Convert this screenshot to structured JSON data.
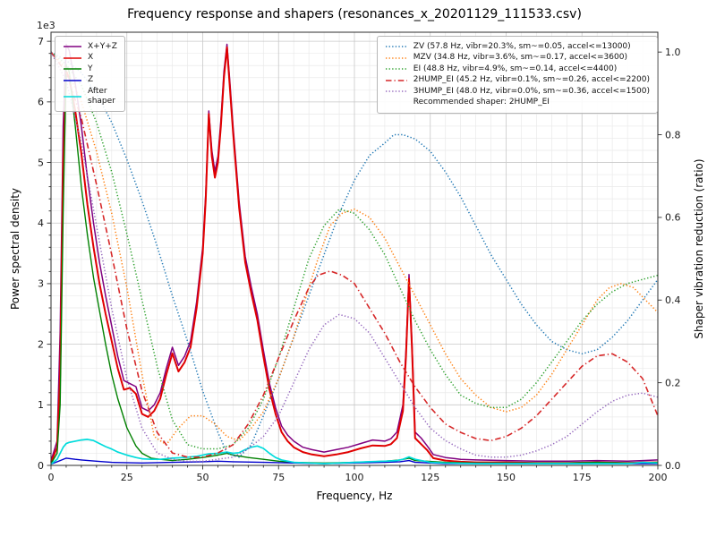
{
  "chart_data": {
    "type": "line",
    "title": "Frequency response and shapers (resonances_x_20201129_111533.csv)",
    "xlabel": "Frequency, Hz",
    "ylabel_left": "Power spectral density",
    "ylabel_right": "Shaper vibration reduction (ratio)",
    "y_offset_text": "1e3",
    "grid": true,
    "xlim": [
      0,
      200
    ],
    "ylim_left": [
      0,
      7.15
    ],
    "ylim_right": [
      0,
      1.048
    ],
    "xticks": [
      0,
      25,
      50,
      75,
      100,
      125,
      150,
      175,
      200
    ],
    "xtick_minor_step": 5,
    "yticks_left": [
      0,
      1,
      2,
      3,
      4,
      5,
      6,
      7
    ],
    "ytick_minor_step": 0.2,
    "yticks_right": [
      0,
      0.2,
      0.4,
      0.6,
      0.8,
      1.0
    ],
    "yticks_right_labels": [
      "0.0",
      "0.2",
      "0.4",
      "0.6",
      "0.8",
      "1.0"
    ],
    "colors": {
      "grid_major": "#c8c8c8",
      "grid_minor": "#e9e9e9",
      "spine": "#2e2e2e"
    },
    "legend_psd": {
      "items": [
        {
          "label": "X+Y+Z",
          "color": "#800080",
          "dash": "solid"
        },
        {
          "label": "X",
          "color": "#e00000",
          "dash": "solid"
        },
        {
          "label": "Y",
          "color": "#008000",
          "dash": "solid"
        },
        {
          "label": "Z",
          "color": "#0000cc",
          "dash": "solid"
        },
        {
          "label": "After\nshaper",
          "color": "#00dcdc",
          "dash": "solid"
        }
      ]
    },
    "legend_shapers": {
      "items": [
        {
          "label": "ZV (57.8 Hz, vibr=20.3%, sm~=0.05, accel<=13000)",
          "color": "#1f77b4",
          "dash": "dotted"
        },
        {
          "label": "MZV (34.8 Hz, vibr=3.6%, sm~=0.17, accel<=3600)",
          "color": "#ff7f0e",
          "dash": "dotted"
        },
        {
          "label": "EI (48.8 Hz, vibr=4.9%, sm~=0.14, accel<=4400)",
          "color": "#2ca02c",
          "dash": "dotted"
        },
        {
          "label": "2HUMP_EI (45.2 Hz, vibr=0.1%, sm~=0.26, accel<=2200)",
          "color": "#d62728",
          "dash": "dashdot"
        },
        {
          "label": "3HUMP_EI (48.0 Hz, vibr=0.0%, sm~=0.36, accel<=1500)",
          "color": "#9467bd",
          "dash": "dotted"
        },
        {
          "label": "Recommended shaper: 2HUMP_EI",
          "color": "",
          "dash": "none"
        }
      ]
    },
    "series": [
      {
        "id": "xyz",
        "label": "X+Y+Z",
        "axis": "left",
        "color": "#800080",
        "dash": "solid",
        "width": 1.5,
        "x": [
          0,
          2,
          3,
          4,
          5,
          6,
          8,
          10,
          12,
          14,
          16,
          18,
          20,
          22,
          24,
          26,
          28,
          30,
          32,
          34,
          36,
          38,
          40,
          42,
          44,
          46,
          48,
          50,
          51,
          52,
          53,
          54,
          55,
          56,
          57,
          58,
          59,
          60,
          62,
          64,
          66,
          68,
          70,
          72,
          74,
          76,
          78,
          80,
          83,
          86,
          90,
          94,
          98,
          102,
          106,
          110,
          112,
          114,
          116,
          117,
          118,
          119,
          120,
          122,
          124,
          126,
          130,
          135,
          140,
          150,
          160,
          170,
          180,
          190,
          195,
          200
        ],
        "y": [
          0.08,
          0.4,
          2.2,
          5.6,
          6.95,
          6.85,
          6.3,
          5.6,
          4.75,
          4.0,
          3.35,
          2.8,
          2.3,
          1.8,
          1.4,
          1.35,
          1.3,
          0.95,
          0.9,
          1.0,
          1.2,
          1.6,
          1.95,
          1.65,
          1.8,
          2.05,
          2.7,
          3.6,
          4.5,
          5.85,
          5.2,
          4.85,
          5.1,
          5.7,
          6.5,
          6.95,
          6.3,
          5.6,
          4.35,
          3.45,
          2.95,
          2.5,
          1.9,
          1.35,
          0.95,
          0.65,
          0.5,
          0.4,
          0.3,
          0.26,
          0.22,
          0.26,
          0.3,
          0.36,
          0.42,
          0.4,
          0.44,
          0.55,
          1.0,
          1.9,
          3.15,
          2.0,
          0.55,
          0.45,
          0.32,
          0.18,
          0.13,
          0.1,
          0.09,
          0.08,
          0.07,
          0.07,
          0.08,
          0.07,
          0.08,
          0.09
        ]
      },
      {
        "id": "x",
        "label": "X",
        "axis": "left",
        "color": "#e00000",
        "dash": "solid",
        "width": 2,
        "x": [
          0,
          2,
          3,
          4,
          5,
          6,
          8,
          10,
          12,
          14,
          16,
          18,
          20,
          22,
          24,
          26,
          28,
          30,
          32,
          34,
          36,
          38,
          40,
          42,
          44,
          46,
          48,
          50,
          51,
          52,
          53,
          54,
          55,
          56,
          57,
          58,
          59,
          60,
          62,
          64,
          66,
          68,
          70,
          72,
          74,
          76,
          78,
          80,
          83,
          86,
          90,
          94,
          98,
          102,
          106,
          110,
          112,
          114,
          116,
          117,
          118,
          119,
          120,
          122,
          124,
          126,
          130,
          135,
          140,
          150,
          160,
          170,
          180,
          190,
          195,
          200
        ],
        "y": [
          0.05,
          0.3,
          1.5,
          5.0,
          6.5,
          6.4,
          5.85,
          5.15,
          4.3,
          3.6,
          3.0,
          2.5,
          2.05,
          1.6,
          1.25,
          1.28,
          1.18,
          0.85,
          0.8,
          0.9,
          1.1,
          1.5,
          1.85,
          1.55,
          1.7,
          1.95,
          2.6,
          3.5,
          4.4,
          5.8,
          5.1,
          4.75,
          5.0,
          5.6,
          6.4,
          6.9,
          6.2,
          5.5,
          4.25,
          3.35,
          2.85,
          2.4,
          1.8,
          1.25,
          0.85,
          0.55,
          0.4,
          0.3,
          0.22,
          0.18,
          0.15,
          0.18,
          0.22,
          0.28,
          0.33,
          0.32,
          0.35,
          0.45,
          0.9,
          1.8,
          3.08,
          1.9,
          0.45,
          0.35,
          0.25,
          0.12,
          0.08,
          0.06,
          0.05,
          0.05,
          0.04,
          0.04,
          0.05,
          0.04,
          0.05,
          0.05
        ]
      },
      {
        "id": "y",
        "label": "Y",
        "axis": "left",
        "color": "#008000",
        "dash": "solid",
        "width": 1.4,
        "x": [
          0,
          2,
          3,
          4,
          5,
          6,
          8,
          10,
          12,
          14,
          16,
          18,
          20,
          22,
          25,
          28,
          30,
          33,
          36,
          40,
          45,
          50,
          55,
          58,
          60,
          65,
          70,
          75,
          80,
          90,
          100,
          110,
          115,
          118,
          120,
          130,
          140,
          150,
          160,
          170,
          180,
          190,
          200
        ],
        "y": [
          0.03,
          0.2,
          1.0,
          4.2,
          6.6,
          6.5,
          5.6,
          4.6,
          3.8,
          3.1,
          2.55,
          2.0,
          1.5,
          1.1,
          0.62,
          0.32,
          0.2,
          0.12,
          0.1,
          0.08,
          0.1,
          0.13,
          0.17,
          0.2,
          0.17,
          0.13,
          0.1,
          0.07,
          0.05,
          0.04,
          0.05,
          0.07,
          0.09,
          0.12,
          0.08,
          0.05,
          0.04,
          0.04,
          0.04,
          0.04,
          0.05,
          0.04,
          0.05
        ]
      },
      {
        "id": "z",
        "label": "Z",
        "axis": "left",
        "color": "#0000cc",
        "dash": "solid",
        "width": 1.4,
        "x": [
          0,
          3,
          5,
          8,
          10,
          15,
          20,
          30,
          40,
          50,
          55,
          60,
          70,
          80,
          90,
          100,
          110,
          115,
          118,
          120,
          130,
          140,
          150,
          160,
          170,
          180,
          190,
          200
        ],
        "y": [
          0.02,
          0.08,
          0.12,
          0.1,
          0.09,
          0.07,
          0.05,
          0.04,
          0.05,
          0.06,
          0.07,
          0.06,
          0.05,
          0.04,
          0.03,
          0.04,
          0.05,
          0.06,
          0.08,
          0.05,
          0.03,
          0.03,
          0.03,
          0.03,
          0.03,
          0.03,
          0.03,
          0.03
        ]
      },
      {
        "id": "after_shaper",
        "label": "After shaper",
        "axis": "left",
        "color": "#00dcdc",
        "dash": "solid",
        "width": 1.7,
        "x": [
          0,
          2,
          3,
          4,
          5,
          6,
          8,
          10,
          12,
          14,
          16,
          18,
          20,
          22,
          25,
          28,
          30,
          33,
          36,
          40,
          44,
          48,
          50,
          52,
          55,
          58,
          60,
          62,
          64,
          66,
          68,
          70,
          72,
          74,
          76,
          80,
          85,
          90,
          95,
          100,
          105,
          110,
          114,
          116,
          118,
          120,
          122,
          125,
          130,
          140,
          150,
          160,
          170,
          180,
          190,
          195,
          200
        ],
        "y": [
          0.02,
          0.1,
          0.2,
          0.3,
          0.36,
          0.38,
          0.4,
          0.42,
          0.43,
          0.41,
          0.36,
          0.31,
          0.27,
          0.22,
          0.17,
          0.13,
          0.11,
          0.1,
          0.1,
          0.12,
          0.13,
          0.15,
          0.17,
          0.19,
          0.2,
          0.22,
          0.2,
          0.21,
          0.26,
          0.3,
          0.32,
          0.28,
          0.2,
          0.13,
          0.09,
          0.05,
          0.04,
          0.03,
          0.04,
          0.05,
          0.06,
          0.07,
          0.08,
          0.1,
          0.14,
          0.1,
          0.08,
          0.05,
          0.04,
          0.03,
          0.03,
          0.03,
          0.03,
          0.03,
          0.03,
          0.05,
          0.04
        ]
      },
      {
        "id": "zv",
        "label": "ZV",
        "axis": "right",
        "color": "#1f77b4",
        "dash": "dotted",
        "width": 1.5,
        "x": [
          0,
          5,
          10,
          15,
          20,
          25,
          30,
          35,
          40,
          45,
          50,
          55,
          58,
          62,
          66,
          70,
          75,
          80,
          85,
          90,
          95,
          100,
          105,
          110,
          113,
          116,
          120,
          125,
          130,
          135,
          140,
          145,
          150,
          155,
          160,
          165,
          170,
          175,
          180,
          185,
          190,
          195,
          200
        ],
        "y": [
          1.0,
          0.98,
          0.95,
          0.9,
          0.83,
          0.74,
          0.64,
          0.53,
          0.41,
          0.3,
          0.18,
          0.08,
          0.03,
          0.02,
          0.05,
          0.12,
          0.21,
          0.31,
          0.41,
          0.51,
          0.61,
          0.69,
          0.75,
          0.78,
          0.8,
          0.8,
          0.79,
          0.76,
          0.71,
          0.65,
          0.58,
          0.51,
          0.45,
          0.39,
          0.34,
          0.3,
          0.28,
          0.27,
          0.28,
          0.31,
          0.35,
          0.4,
          0.45
        ]
      },
      {
        "id": "mzv",
        "label": "MZV",
        "axis": "right",
        "color": "#ff7f0e",
        "dash": "dotted",
        "width": 1.5,
        "x": [
          0,
          5,
          10,
          15,
          20,
          25,
          30,
          34,
          38,
          42,
          46,
          50,
          54,
          58,
          62,
          66,
          70,
          75,
          80,
          85,
          88,
          92,
          96,
          100,
          105,
          110,
          115,
          120,
          125,
          130,
          135,
          140,
          145,
          150,
          155,
          160,
          165,
          170,
          175,
          180,
          184,
          188,
          192,
          196,
          200
        ],
        "y": [
          1.0,
          0.96,
          0.88,
          0.76,
          0.61,
          0.43,
          0.22,
          0.07,
          0.05,
          0.09,
          0.12,
          0.12,
          0.1,
          0.07,
          0.06,
          0.09,
          0.13,
          0.21,
          0.31,
          0.43,
          0.5,
          0.58,
          0.61,
          0.62,
          0.6,
          0.55,
          0.48,
          0.41,
          0.34,
          0.27,
          0.21,
          0.17,
          0.14,
          0.13,
          0.14,
          0.17,
          0.22,
          0.28,
          0.34,
          0.4,
          0.43,
          0.44,
          0.43,
          0.4,
          0.37
        ]
      },
      {
        "id": "ei",
        "label": "EI",
        "axis": "right",
        "color": "#2ca02c",
        "dash": "dotted",
        "width": 1.5,
        "x": [
          0,
          5,
          10,
          15,
          20,
          25,
          30,
          35,
          40,
          45,
          50,
          55,
          60,
          65,
          70,
          75,
          80,
          85,
          90,
          95,
          100,
          105,
          110,
          115,
          120,
          125,
          130,
          135,
          140,
          145,
          150,
          155,
          160,
          165,
          170,
          175,
          180,
          185,
          190,
          195,
          200
        ],
        "y": [
          1.0,
          0.97,
          0.92,
          0.83,
          0.71,
          0.56,
          0.4,
          0.24,
          0.11,
          0.05,
          0.04,
          0.04,
          0.05,
          0.09,
          0.16,
          0.26,
          0.38,
          0.5,
          0.58,
          0.62,
          0.61,
          0.57,
          0.51,
          0.43,
          0.35,
          0.28,
          0.22,
          0.17,
          0.15,
          0.14,
          0.14,
          0.16,
          0.2,
          0.25,
          0.3,
          0.35,
          0.39,
          0.42,
          0.44,
          0.45,
          0.46
        ]
      },
      {
        "id": "2hump_ei",
        "label": "2HUMP_EI",
        "axis": "right",
        "color": "#d62728",
        "dash": "dashdot",
        "width": 1.6,
        "x": [
          0,
          5,
          10,
          15,
          20,
          25,
          30,
          35,
          40,
          45,
          50,
          55,
          60,
          65,
          70,
          75,
          80,
          85,
          88,
          92,
          96,
          100,
          105,
          110,
          115,
          120,
          125,
          130,
          135,
          140,
          145,
          150,
          155,
          160,
          165,
          170,
          175,
          180,
          185,
          190,
          195,
          200
        ],
        "y": [
          1.0,
          0.95,
          0.84,
          0.68,
          0.51,
          0.33,
          0.18,
          0.08,
          0.03,
          0.02,
          0.02,
          0.03,
          0.05,
          0.1,
          0.17,
          0.26,
          0.35,
          0.43,
          0.46,
          0.47,
          0.46,
          0.44,
          0.38,
          0.32,
          0.25,
          0.19,
          0.14,
          0.1,
          0.08,
          0.065,
          0.06,
          0.07,
          0.09,
          0.12,
          0.16,
          0.2,
          0.24,
          0.265,
          0.27,
          0.25,
          0.21,
          0.12
        ]
      },
      {
        "id": "3hump_ei",
        "label": "3HUMP_EI",
        "axis": "right",
        "color": "#9467bd",
        "dash": "dotted",
        "width": 1.5,
        "x": [
          0,
          5,
          10,
          15,
          20,
          25,
          30,
          35,
          40,
          45,
          50,
          55,
          60,
          65,
          70,
          75,
          80,
          85,
          90,
          95,
          100,
          105,
          110,
          115,
          120,
          125,
          130,
          135,
          140,
          145,
          150,
          155,
          160,
          165,
          170,
          175,
          180,
          185,
          190,
          195,
          200
        ],
        "y": [
          1.0,
          0.93,
          0.78,
          0.58,
          0.38,
          0.21,
          0.09,
          0.03,
          0.015,
          0.01,
          0.01,
          0.015,
          0.02,
          0.04,
          0.07,
          0.12,
          0.2,
          0.28,
          0.34,
          0.365,
          0.355,
          0.32,
          0.26,
          0.2,
          0.14,
          0.09,
          0.06,
          0.04,
          0.025,
          0.02,
          0.02,
          0.025,
          0.035,
          0.05,
          0.07,
          0.1,
          0.13,
          0.155,
          0.17,
          0.175,
          0.165
        ]
      }
    ]
  }
}
